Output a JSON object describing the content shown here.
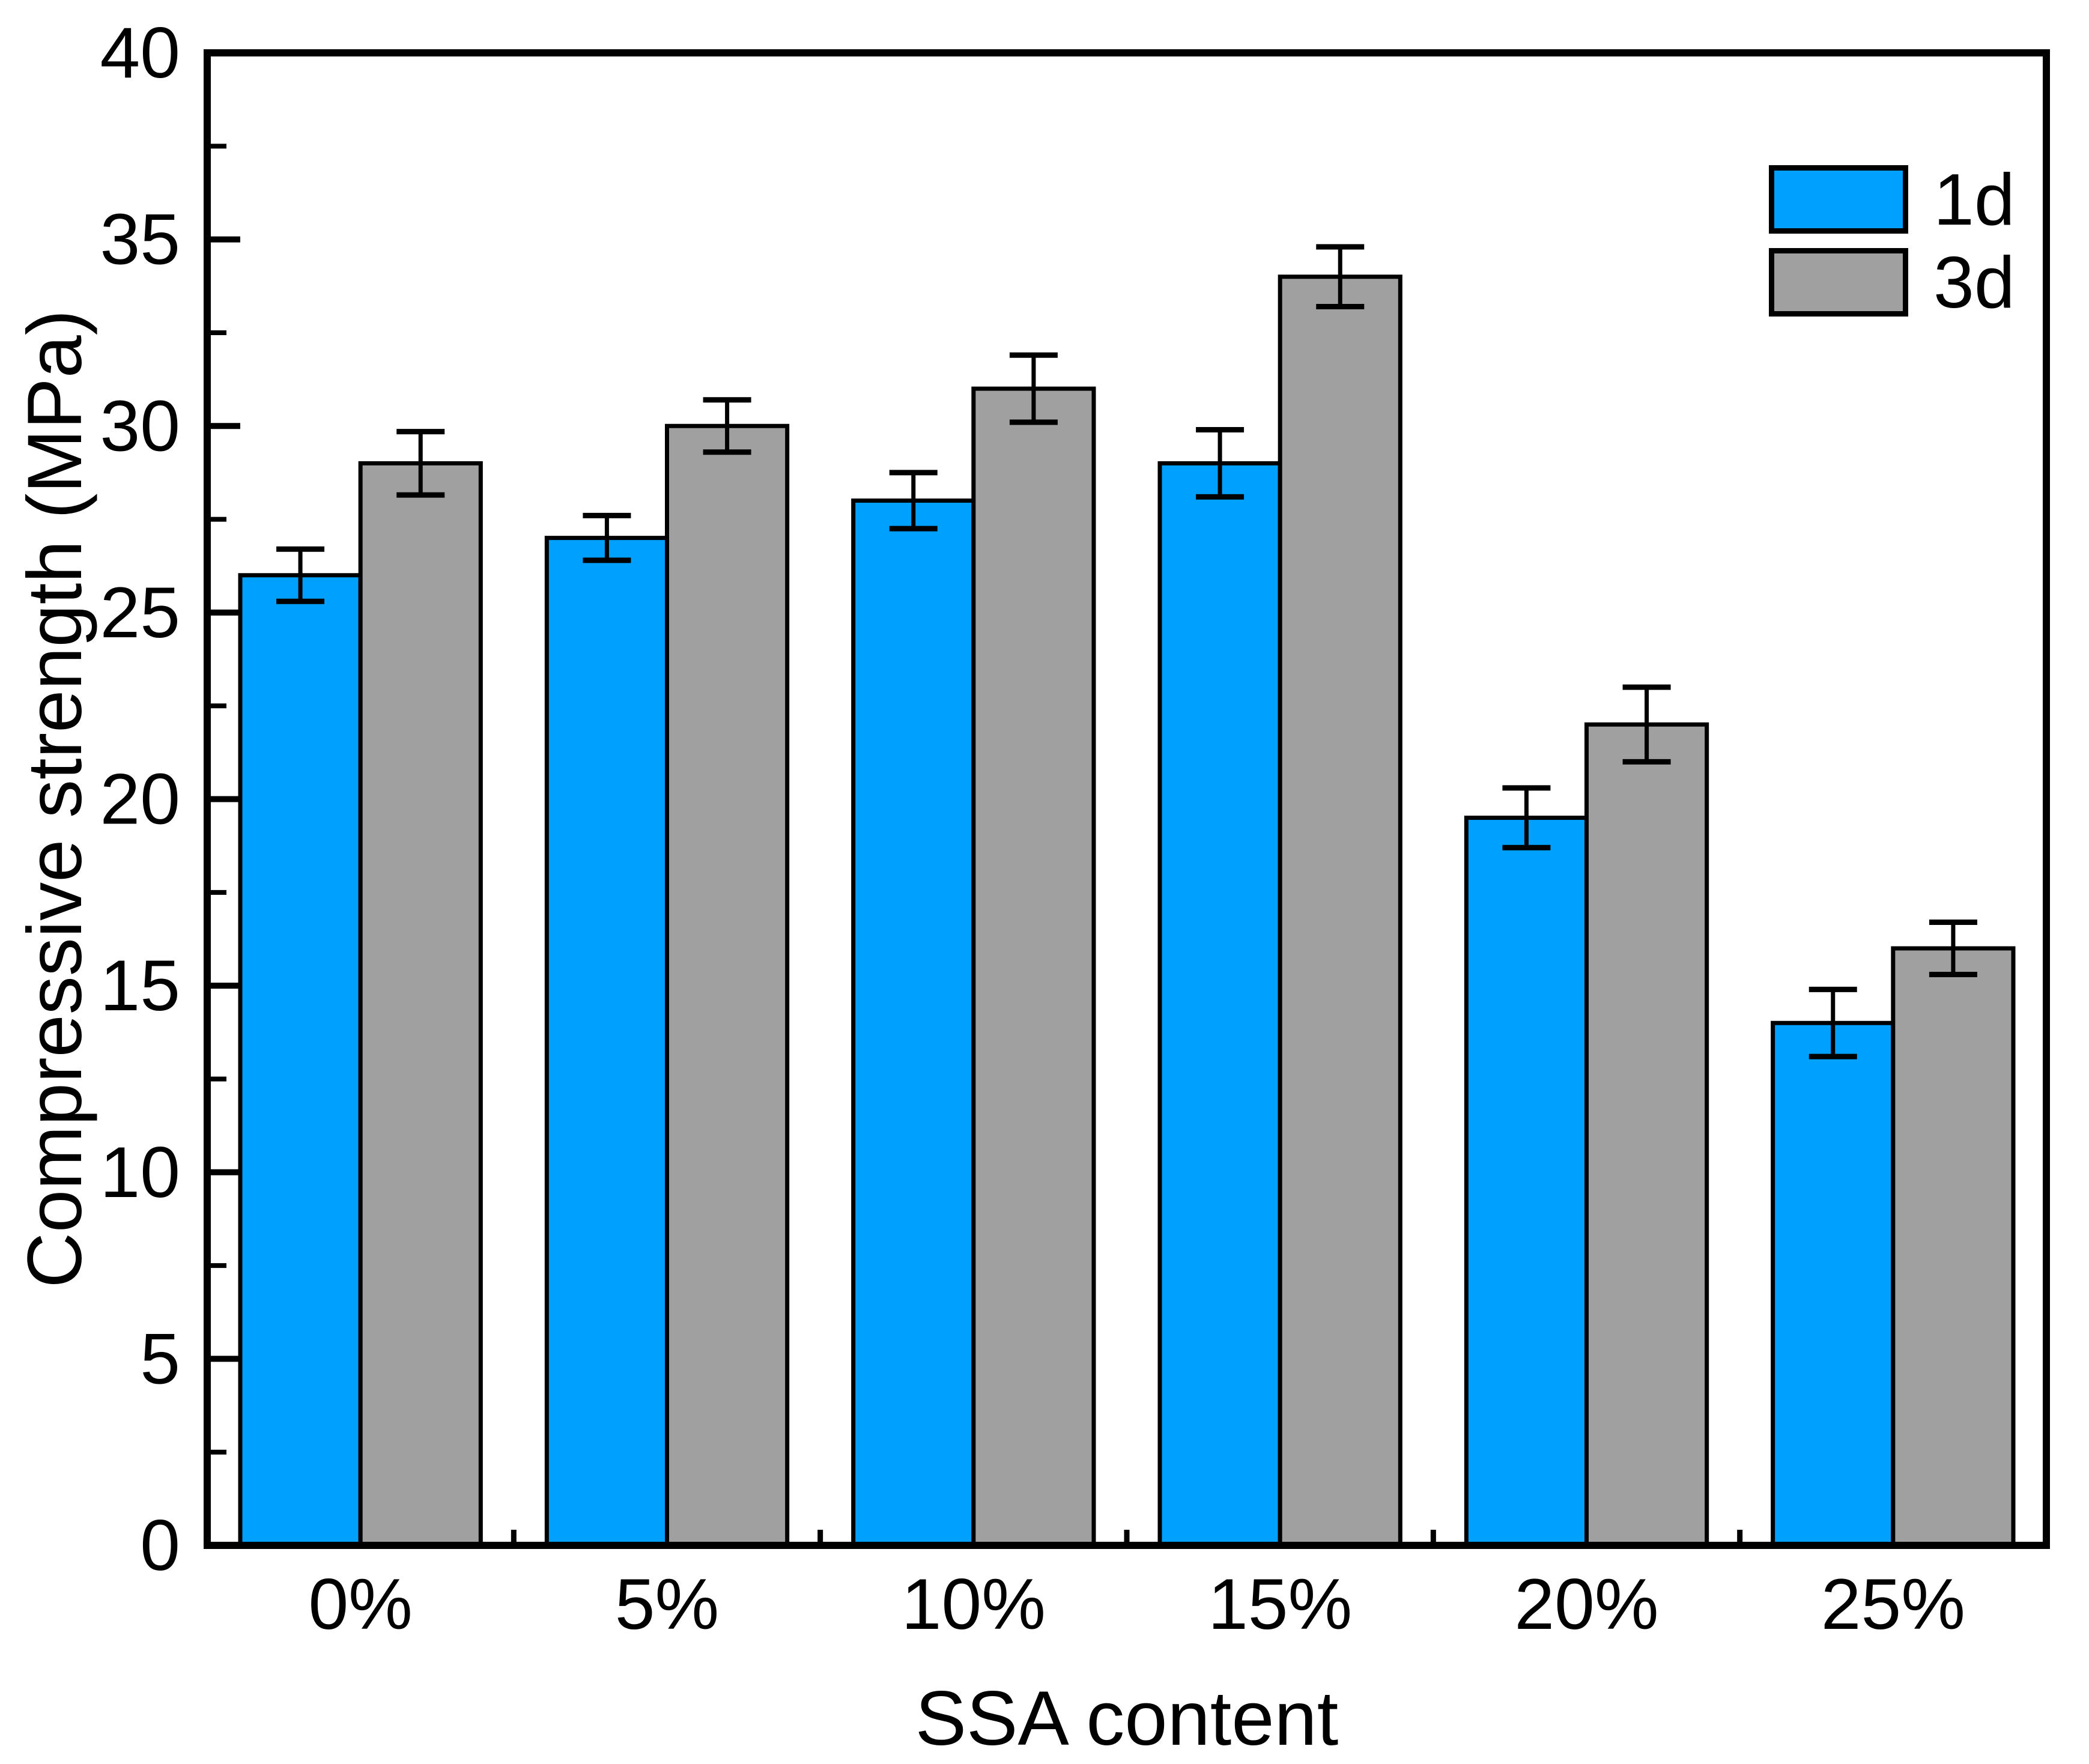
{
  "chart_data": {
    "type": "bar",
    "title": "",
    "xlabel": "SSA content",
    "ylabel": "Compressive strength (MPa)",
    "categories": [
      "0%",
      "5%",
      "10%",
      "15%",
      "20%",
      "25%"
    ],
    "series": [
      {
        "name": "1d",
        "color": "#00A0FF",
        "values": [
          26,
          27,
          28,
          29,
          19.5,
          14
        ],
        "errors": [
          0.7,
          0.6,
          0.75,
          0.9,
          0.8,
          0.9
        ]
      },
      {
        "name": "3d",
        "color": "#A0A0A0",
        "values": [
          29,
          30,
          31,
          34,
          22,
          16
        ],
        "errors": [
          0.85,
          0.7,
          0.9,
          0.8,
          1.0,
          0.7
        ]
      }
    ],
    "ylim": [
      0,
      40
    ],
    "y_major_ticks": [
      0,
      5,
      10,
      15,
      20,
      25,
      30,
      35,
      40
    ],
    "y_minor_step": 2.5,
    "grid": false,
    "legend_position": "top-right",
    "bar_edge_color": "#000000",
    "error_bar_color": "#000000",
    "axis_color": "#000000",
    "background_color": "#FFFFFF"
  }
}
